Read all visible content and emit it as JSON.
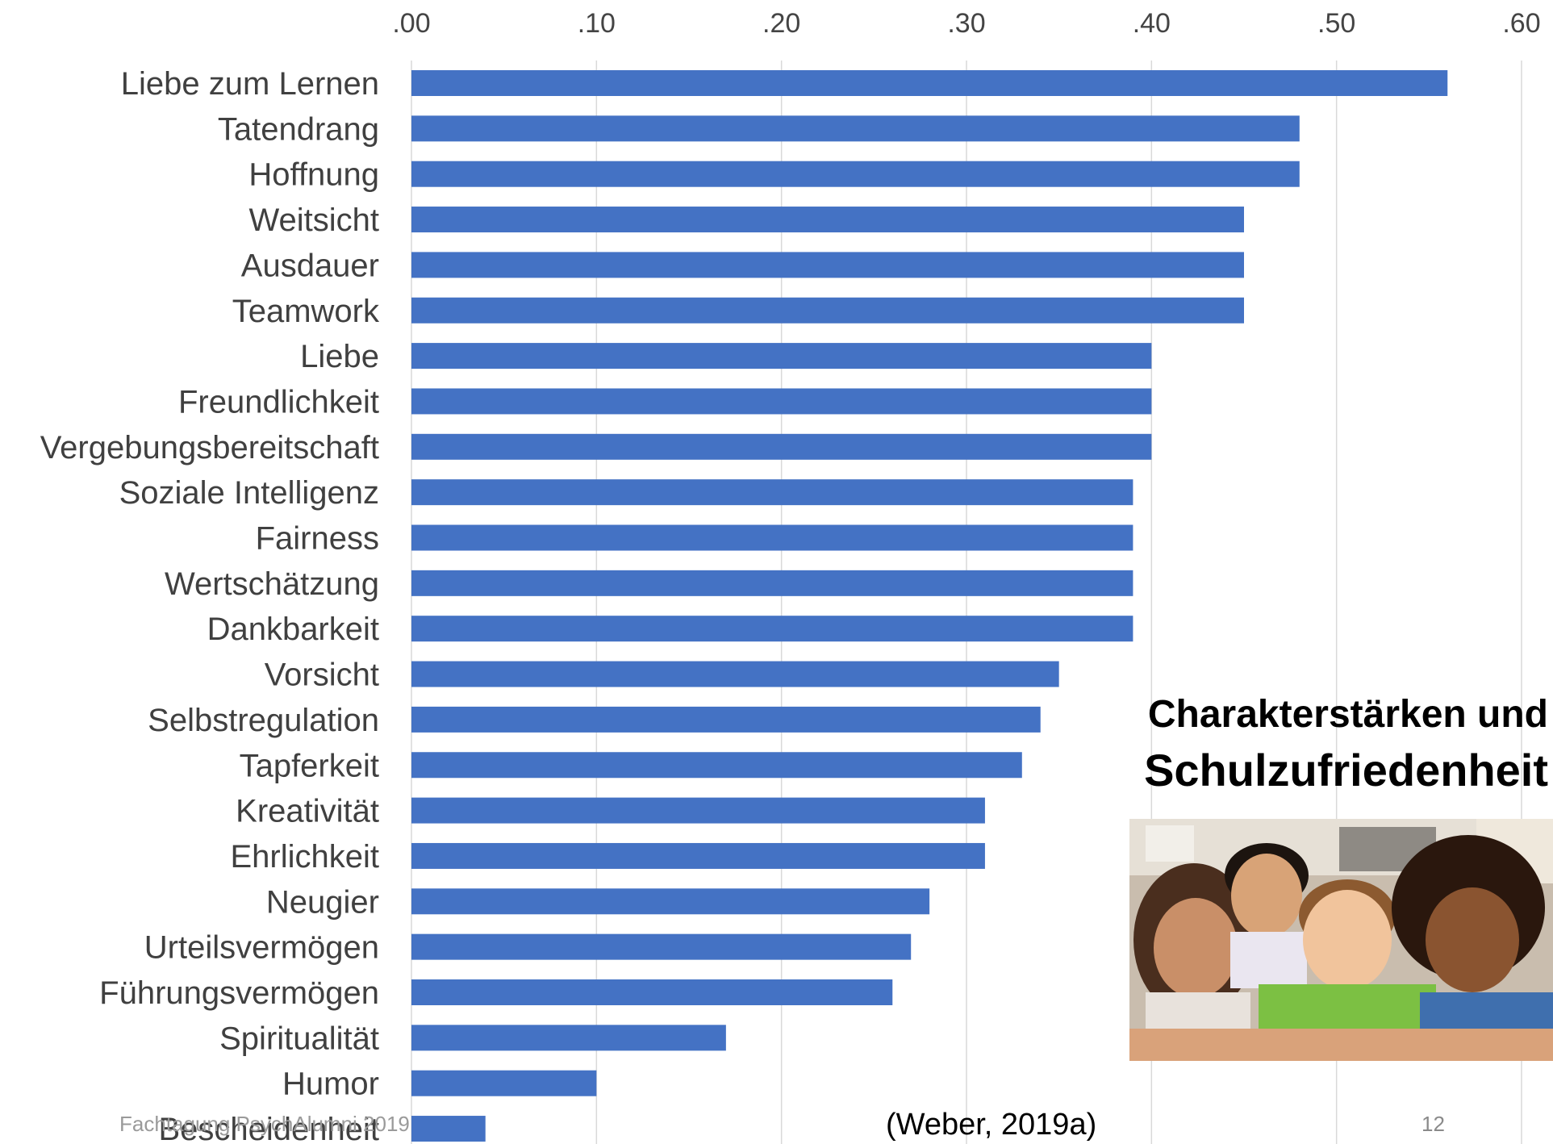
{
  "slide": {
    "title_line1": "Charakterstärken und",
    "title_line2": "Schulzufriedenheit",
    "citation": "(Weber, 2019a)",
    "footer": "Fachtagung PsychAlumni 2019",
    "page_number": "12"
  },
  "chart_data": {
    "type": "bar",
    "orientation": "horizontal",
    "title": "",
    "xlabel": "",
    "ylabel": "",
    "xlim": [
      0,
      0.6
    ],
    "x_ticks": [
      ".00",
      ".10",
      ".20",
      ".30",
      ".40",
      ".50",
      ".60"
    ],
    "x_axis_position": "top",
    "grid": true,
    "bar_color": "#4472c4",
    "categories": [
      "Liebe zum Lernen",
      "Tatendrang",
      "Hoffnung",
      "Weitsicht",
      "Ausdauer",
      "Teamwork",
      "Liebe",
      "Freundlichkeit",
      "Vergebungsbereitschaft",
      "Soziale Intelligenz",
      "Fairness",
      "Wertschätzung",
      "Dankbarkeit",
      "Vorsicht",
      "Selbstregulation",
      "Tapferkeit",
      "Kreativität",
      "Ehrlichkeit",
      "Neugier",
      "Urteilsvermögen",
      "Führungsvermögen",
      "Spiritualität",
      "Humor",
      "Bescheidenheit"
    ],
    "values": [
      0.56,
      0.48,
      0.48,
      0.45,
      0.45,
      0.45,
      0.4,
      0.4,
      0.4,
      0.39,
      0.39,
      0.39,
      0.39,
      0.35,
      0.34,
      0.33,
      0.31,
      0.31,
      0.28,
      0.27,
      0.26,
      0.17,
      0.1,
      0.04
    ]
  }
}
